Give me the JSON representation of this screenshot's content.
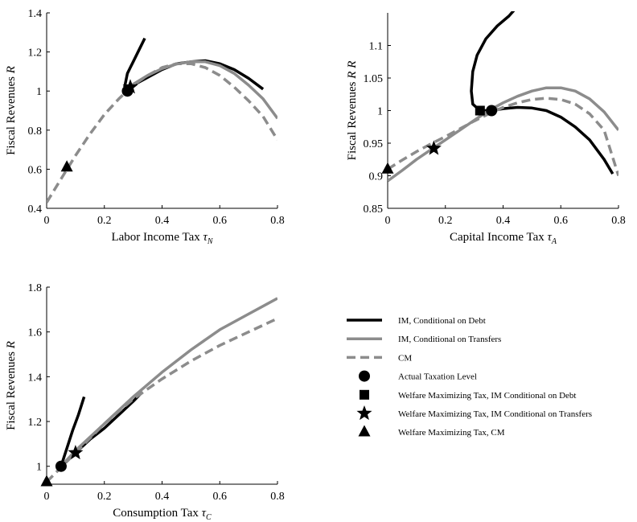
{
  "colors": {
    "im_debt": "#000000",
    "im_transfers": "#8c8c8c",
    "cm": "#8c8c8c",
    "axis": "#000000"
  },
  "legend": [
    {
      "label": "IM, Conditional on Debt",
      "kind": "line",
      "style": "solid",
      "color": "#000000"
    },
    {
      "label": "IM, Conditional on Transfers",
      "kind": "line",
      "style": "solid",
      "color": "#8c8c8c"
    },
    {
      "label": "CM",
      "kind": "line",
      "style": "dashed",
      "color": "#8c8c8c"
    },
    {
      "label": "Actual Taxation Level",
      "kind": "marker",
      "marker": "circle",
      "color": "#000000"
    },
    {
      "label": "Welfare Maximizing Tax, IM Conditional on Debt",
      "kind": "marker",
      "marker": "square",
      "color": "#000000"
    },
    {
      "label": "Welfare Maximizing Tax, IM Conditional on Transfers",
      "kind": "marker",
      "marker": "star",
      "color": "#000000"
    },
    {
      "label": "Welfare Maximizing Tax, CM",
      "kind": "marker",
      "marker": "triangle",
      "color": "#000000"
    }
  ],
  "chart_data": [
    {
      "type": "line",
      "id": "labor",
      "title": "",
      "xlabel": "Labor Income Tax",
      "xlabel_symbol": "τ",
      "xlabel_sub": "N",
      "ylabel": "Fiscal Revenues",
      "ylabel_symbol": "R",
      "xlim": [
        0,
        0.8
      ],
      "ylim": [
        0.4,
        1.4
      ],
      "xticks": [
        0,
        0.2,
        0.4,
        0.6,
        0.8
      ],
      "xtick_labels": [
        "0",
        "0.2",
        "0.4",
        "0.6",
        "0.8"
      ],
      "yticks": [
        0.4,
        0.6,
        0.8,
        1,
        1.2,
        1.4
      ],
      "ytick_labels": [
        "0.4",
        "0.6",
        "0.8",
        "1",
        "1.2",
        "1.4"
      ],
      "grid": false,
      "series": [
        {
          "name": "IM, Conditional on Debt",
          "style": "solid",
          "color": "#000000",
          "x": [
            0.27,
            0.28,
            0.29,
            0.3,
            0.32,
            0.34
          ],
          "y": [
            1.02,
            1.09,
            1.12,
            1.15,
            1.21,
            1.27
          ]
        },
        {
          "name": "IM, Conditional on Debt",
          "style": "solid",
          "color": "#000000",
          "x": [
            0.27,
            0.3,
            0.35,
            0.4,
            0.45,
            0.5,
            0.55,
            0.6,
            0.65,
            0.7,
            0.75
          ],
          "y": [
            1.0,
            1.03,
            1.07,
            1.11,
            1.14,
            1.15,
            1.155,
            1.14,
            1.11,
            1.065,
            1.01
          ]
        },
        {
          "name": "IM, Conditional on Transfers",
          "style": "solid",
          "color": "#8c8c8c",
          "x": [
            0.27,
            0.3,
            0.35,
            0.4,
            0.45,
            0.5,
            0.55,
            0.6,
            0.65,
            0.7,
            0.75,
            0.8
          ],
          "y": [
            1.0,
            1.035,
            1.08,
            1.115,
            1.138,
            1.15,
            1.15,
            1.13,
            1.09,
            1.03,
            0.96,
            0.86
          ]
        },
        {
          "name": "CM",
          "style": "dashed",
          "color": "#8c8c8c",
          "x": [
            0,
            0.05,
            0.1,
            0.15,
            0.2,
            0.25,
            0.3,
            0.35,
            0.4,
            0.45,
            0.5,
            0.55,
            0.6,
            0.65,
            0.7,
            0.75,
            0.8
          ],
          "y": [
            0.43,
            0.55,
            0.67,
            0.78,
            0.88,
            0.96,
            1.03,
            1.08,
            1.12,
            1.14,
            1.14,
            1.12,
            1.08,
            1.02,
            0.95,
            0.87,
            0.75
          ]
        }
      ],
      "markers": [
        {
          "marker": "circle",
          "x": 0.28,
          "y": 1.0
        },
        {
          "marker": "star",
          "x": 0.29,
          "y": 1.02
        },
        {
          "marker": "triangle",
          "x": 0.07,
          "y": 0.61
        }
      ]
    },
    {
      "type": "line",
      "id": "capital",
      "title": "",
      "xlabel": "Capital Income Tax",
      "xlabel_symbol": "τ",
      "xlabel_sub": "A",
      "ylabel": "Fiscal Revenues",
      "ylabel_symbol": "R R",
      "xlim": [
        0,
        0.8
      ],
      "ylim": [
        0.85,
        1.15
      ],
      "xticks": [
        0,
        0.2,
        0.4,
        0.6,
        0.8
      ],
      "xtick_labels": [
        "0",
        "0.2",
        "0.4",
        "0.6",
        "0.8"
      ],
      "yticks": [
        0.85,
        0.9,
        0.95,
        1,
        1.05,
        1.1
      ],
      "ytick_labels": [
        "0.85",
        "0.9",
        "0.95",
        "1",
        "1.05",
        "1.1"
      ],
      "grid": false,
      "series": [
        {
          "name": "IM, Conditional on Debt",
          "style": "solid",
          "color": "#000000",
          "x": [
            0.32,
            0.295,
            0.29,
            0.295,
            0.31,
            0.34,
            0.38,
            0.42,
            0.44
          ],
          "y": [
            1.0,
            1.01,
            1.03,
            1.06,
            1.085,
            1.11,
            1.13,
            1.145,
            1.155
          ]
        },
        {
          "name": "IM, Conditional on Debt",
          "style": "solid",
          "color": "#000000",
          "x": [
            0.32,
            0.36,
            0.4,
            0.45,
            0.5,
            0.55,
            0.6,
            0.65,
            0.7,
            0.75,
            0.78
          ],
          "y": [
            1.0,
            1.0,
            1.003,
            1.005,
            1.004,
            1.0,
            0.99,
            0.975,
            0.955,
            0.925,
            0.903
          ]
        },
        {
          "name": "IM, Conditional on Transfers",
          "style": "solid",
          "color": "#8c8c8c",
          "x": [
            0,
            0.05,
            0.1,
            0.15,
            0.2,
            0.25,
            0.3,
            0.35,
            0.4,
            0.45,
            0.5,
            0.55,
            0.6,
            0.65,
            0.7,
            0.75,
            0.8
          ],
          "y": [
            0.892,
            0.908,
            0.925,
            0.94,
            0.955,
            0.97,
            0.985,
            1.0,
            1.012,
            1.022,
            1.03,
            1.035,
            1.035,
            1.03,
            1.018,
            0.998,
            0.97
          ]
        },
        {
          "name": "CM",
          "style": "dashed",
          "color": "#8c8c8c",
          "x": [
            0,
            0.05,
            0.1,
            0.15,
            0.2,
            0.25,
            0.3,
            0.35,
            0.4,
            0.45,
            0.5,
            0.55,
            0.6,
            0.65,
            0.7,
            0.75,
            0.8
          ],
          "y": [
            0.91,
            0.924,
            0.937,
            0.949,
            0.96,
            0.972,
            0.984,
            0.995,
            1.005,
            1.012,
            1.017,
            1.019,
            1.017,
            1.01,
            0.995,
            0.97,
            0.9
          ]
        }
      ],
      "markers": [
        {
          "marker": "square",
          "x": 0.32,
          "y": 1.0
        },
        {
          "marker": "circle",
          "x": 0.36,
          "y": 1.0
        },
        {
          "marker": "star",
          "x": 0.16,
          "y": 0.942
        },
        {
          "marker": "triangle",
          "x": 0.0,
          "y": 0.91
        }
      ]
    },
    {
      "type": "line",
      "id": "consumption",
      "title": "",
      "xlabel": "Consumption Tax",
      "xlabel_symbol": "τ",
      "xlabel_sub": "C",
      "ylabel": "Fiscal Revenues",
      "ylabel_symbol": "R",
      "xlim": [
        0,
        0.8
      ],
      "ylim": [
        0.92,
        1.8
      ],
      "xticks": [
        0,
        0.2,
        0.4,
        0.6,
        0.8
      ],
      "xtick_labels": [
        "0",
        "0.2",
        "0.4",
        "0.6",
        "0.8"
      ],
      "yticks": [
        1,
        1.2,
        1.4,
        1.6,
        1.8
      ],
      "ytick_labels": [
        "1",
        "1.2",
        "1.4",
        "1.6",
        "1.8"
      ],
      "grid": false,
      "series": [
        {
          "name": "IM, Conditional on Debt",
          "style": "solid",
          "color": "#000000",
          "x": [
            0.05,
            0.07,
            0.09,
            0.11,
            0.13
          ],
          "y": [
            1.0,
            1.08,
            1.16,
            1.23,
            1.31
          ]
        },
        {
          "name": "IM, Conditional on Debt",
          "style": "solid",
          "color": "#000000",
          "x": [
            0.05,
            0.1,
            0.15,
            0.2,
            0.25,
            0.3,
            0.33
          ],
          "y": [
            1.0,
            1.06,
            1.12,
            1.17,
            1.23,
            1.29,
            1.33
          ]
        },
        {
          "name": "IM, Conditional on Transfers",
          "style": "solid",
          "color": "#8c8c8c",
          "x": [
            0.05,
            0.1,
            0.2,
            0.3,
            0.4,
            0.5,
            0.6,
            0.7,
            0.8
          ],
          "y": [
            1.0,
            1.07,
            1.19,
            1.31,
            1.42,
            1.52,
            1.61,
            1.68,
            1.75
          ]
        },
        {
          "name": "CM",
          "style": "dashed",
          "color": "#8c8c8c",
          "x": [
            0.0,
            0.1,
            0.2,
            0.3,
            0.4,
            0.5,
            0.6,
            0.7,
            0.8
          ],
          "y": [
            0.93,
            1.06,
            1.19,
            1.3,
            1.39,
            1.47,
            1.54,
            1.6,
            1.66
          ]
        }
      ],
      "markers": [
        {
          "marker": "circle",
          "x": 0.05,
          "y": 1.0
        },
        {
          "marker": "star",
          "x": 0.1,
          "y": 1.06
        },
        {
          "marker": "triangle",
          "x": 0.0,
          "y": 0.93
        }
      ]
    }
  ]
}
